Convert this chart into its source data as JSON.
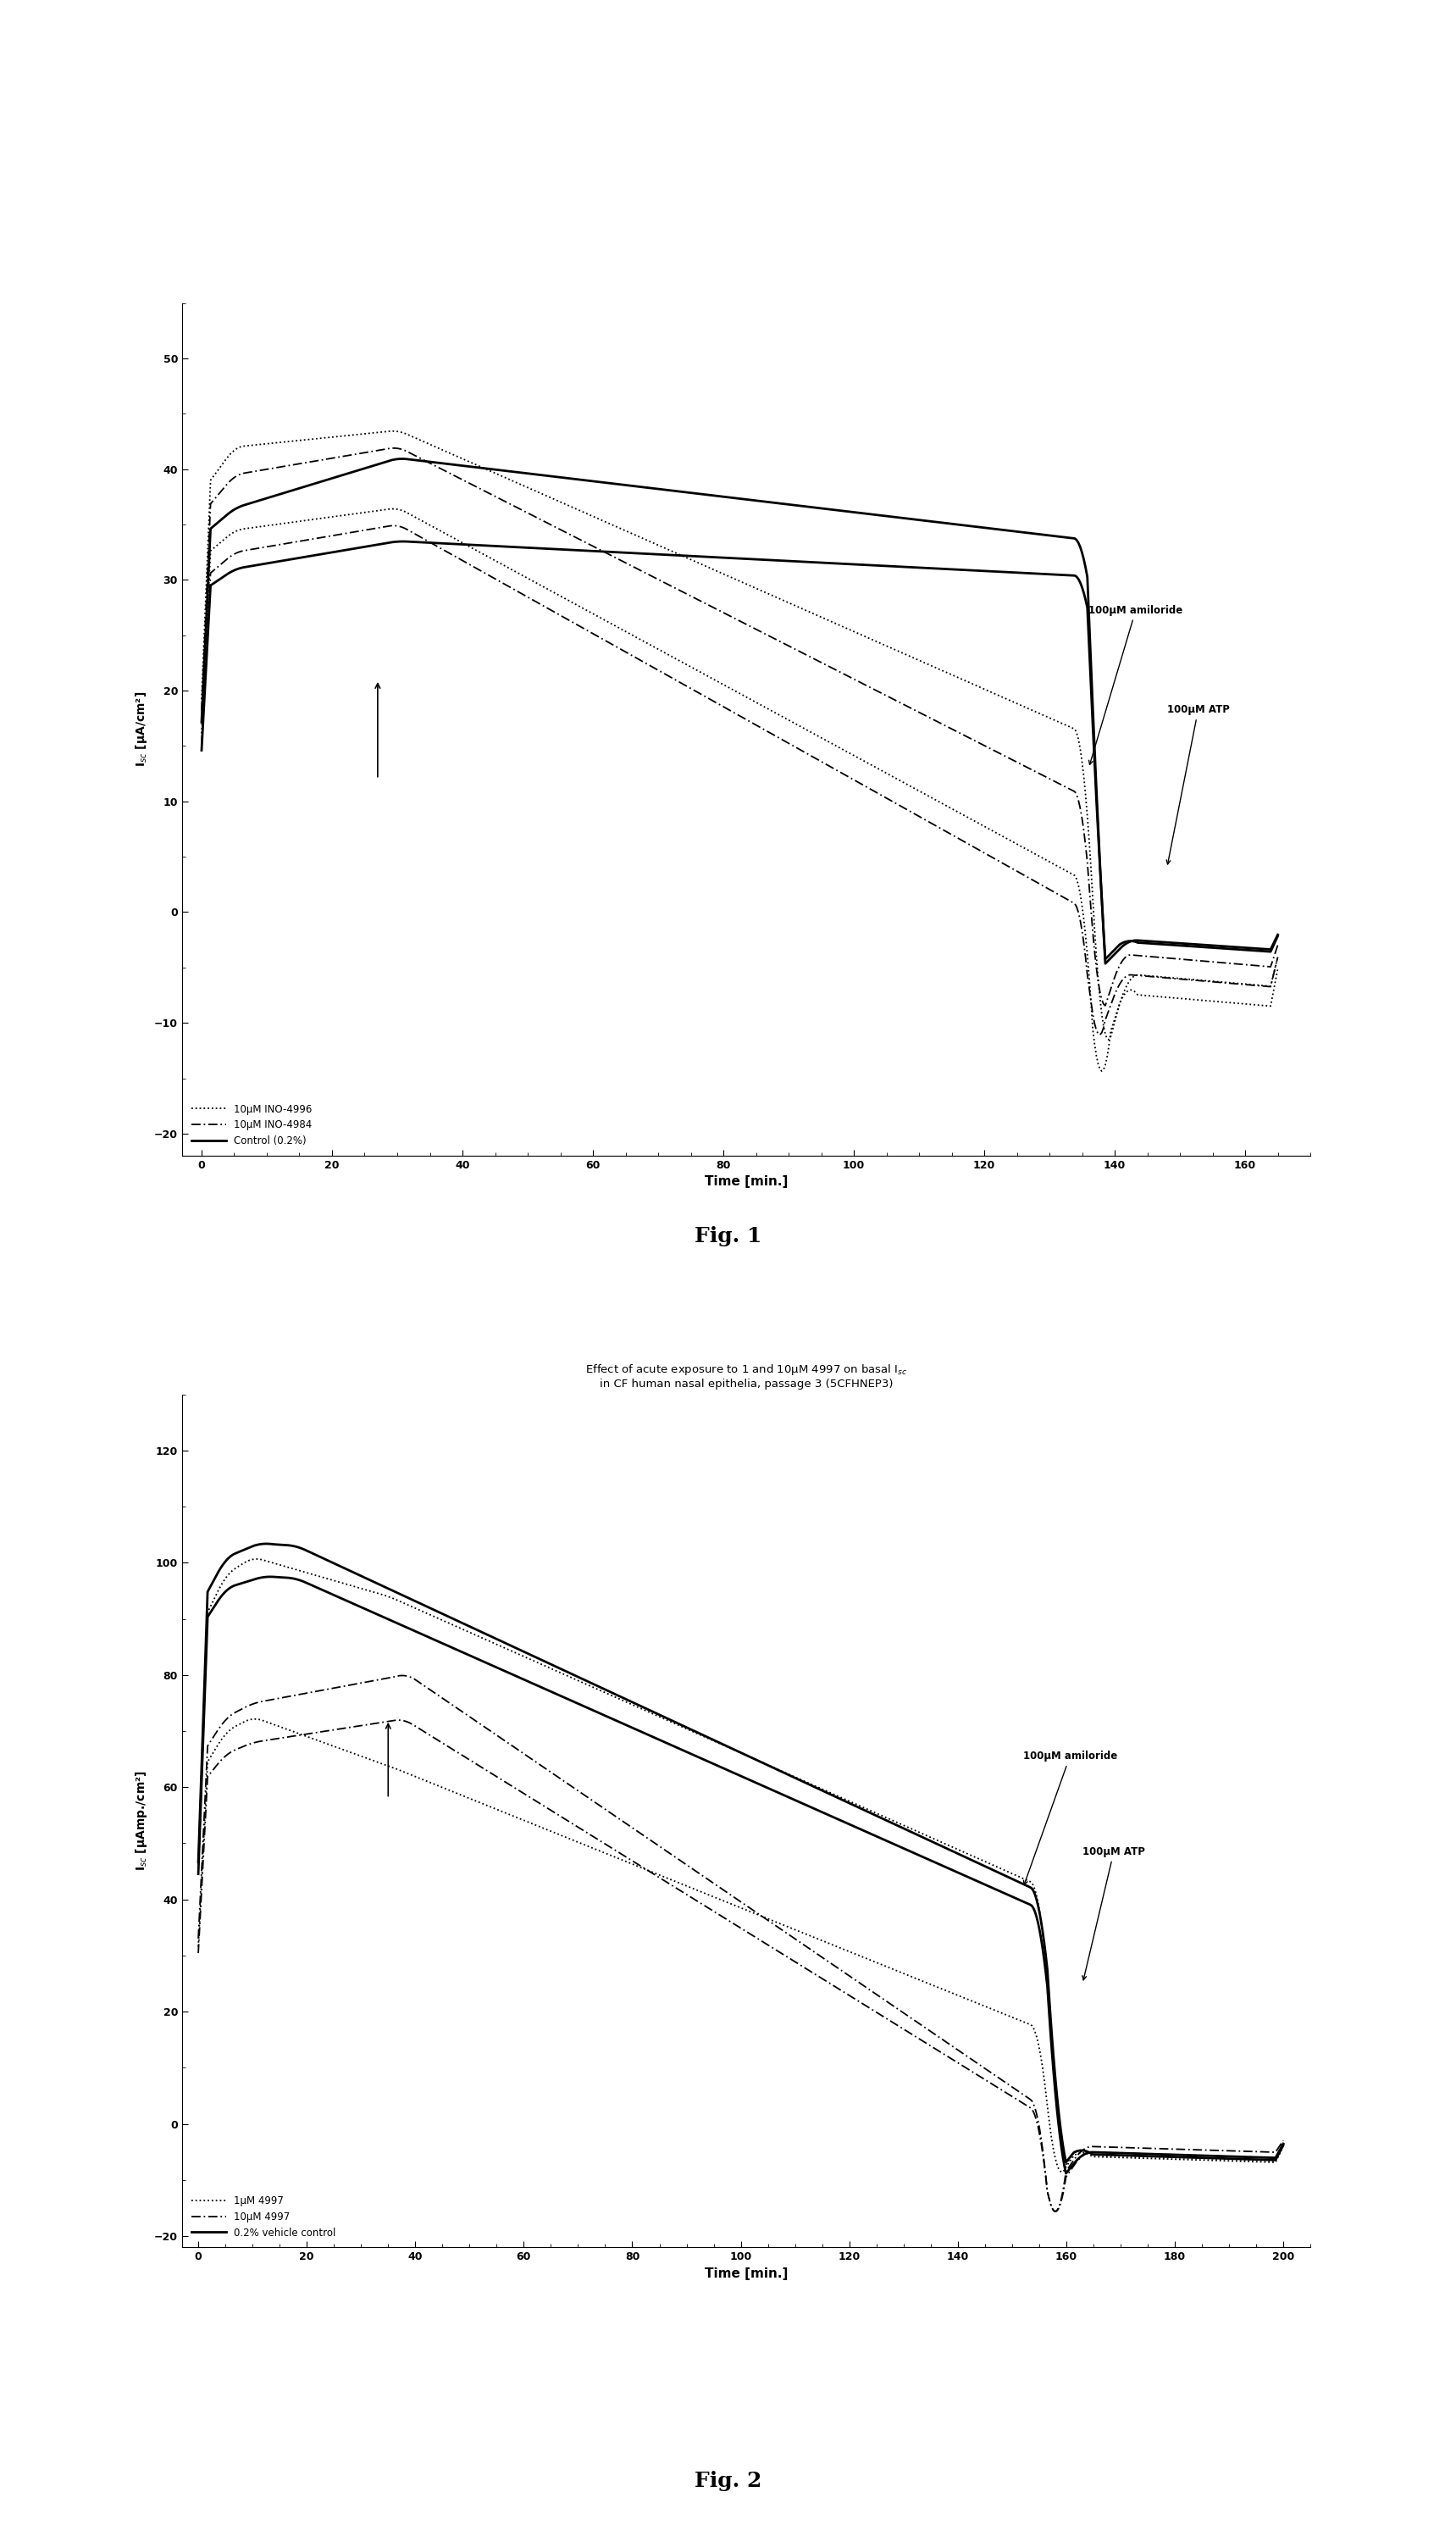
{
  "fig1": {
    "title": "",
    "xlabel": "Time [min.]",
    "ylabel": "I$_{sc}$ [μA/cm²]",
    "xlim": [
      -3,
      170
    ],
    "ylim": [
      -22,
      55
    ],
    "yticks": [
      -20,
      -10,
      0,
      10,
      20,
      30,
      40,
      50
    ],
    "xticks": [
      0,
      20,
      40,
      60,
      80,
      100,
      120,
      140,
      160
    ],
    "fignum": "Fig. 1",
    "legend": [
      {
        "label": "10μM INO-4996",
        "linestyle": "dotted"
      },
      {
        "label": "10μM INO-4984",
        "linestyle": "dashdot"
      },
      {
        "label": "Control (0.2%)",
        "linestyle": "solid"
      }
    ]
  },
  "fig2": {
    "title": "Effect of acute exposure to 1 and 10μM 4997 on basal I$_{sc}$\nin CF human nasal epithelia, passage 3 (5CFHNEP3)",
    "xlabel": "Time [min.]",
    "ylabel": "I$_{sc}$ [μAmp./cm²]",
    "xlim": [
      -3,
      205
    ],
    "ylim": [
      -22,
      130
    ],
    "yticks": [
      -20,
      0,
      20,
      40,
      60,
      80,
      100,
      120
    ],
    "xticks": [
      0,
      20,
      40,
      60,
      80,
      100,
      120,
      140,
      160,
      180,
      200
    ],
    "fignum": "Fig. 2",
    "legend": [
      {
        "label": "1μM 4997",
        "linestyle": "dotted"
      },
      {
        "label": "10μM 4997",
        "linestyle": "dashdot"
      },
      {
        "label": "0.2% vehicle control",
        "linestyle": "solid"
      }
    ]
  }
}
